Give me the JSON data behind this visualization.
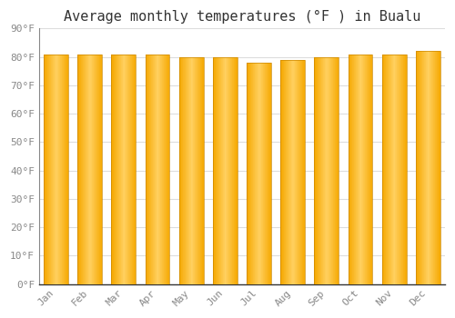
{
  "title": "Average monthly temperatures (°F ) in Bualu",
  "months": [
    "Jan",
    "Feb",
    "Mar",
    "Apr",
    "May",
    "Jun",
    "Jul",
    "Aug",
    "Sep",
    "Oct",
    "Nov",
    "Dec"
  ],
  "values": [
    81,
    81,
    81,
    81,
    80,
    80,
    78,
    79,
    80,
    81,
    81,
    82
  ],
  "ylim": [
    0,
    90
  ],
  "yticks": [
    0,
    10,
    20,
    30,
    40,
    50,
    60,
    70,
    80,
    90
  ],
  "ytick_labels": [
    "0°F",
    "10°F",
    "20°F",
    "30°F",
    "40°F",
    "50°F",
    "60°F",
    "70°F",
    "80°F",
    "90°F"
  ],
  "background_color": "#FFFFFF",
  "grid_color": "#DDDDDD",
  "title_fontsize": 11,
  "tick_fontsize": 8,
  "tick_color": "#888888",
  "bar_color_center": "#FFD060",
  "bar_color_edge": "#F5A800",
  "bar_border_color": "#CC8800",
  "bar_width": 0.72
}
